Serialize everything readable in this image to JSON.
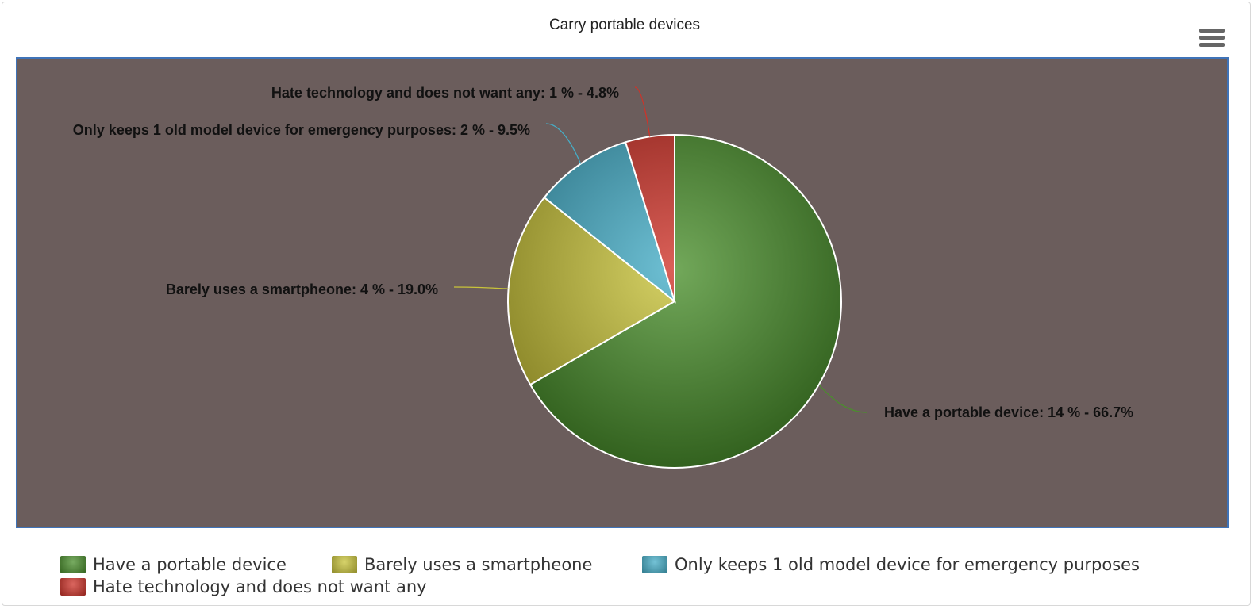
{
  "chart_data": {
    "type": "pie",
    "title": "Carry portable devices",
    "slices": [
      {
        "name": "Have a portable device",
        "value": 14,
        "percent": 66.7,
        "color": "#4a8f2c",
        "label": "Have a portable device: 14 % - 66.7%"
      },
      {
        "name": "Barely uses a smartpheone",
        "value": 4,
        "percent": 19.0,
        "color": "#c9c43a",
        "label": "Barely uses a smartpheone: 4 % - 19.0%"
      },
      {
        "name": "Only keeps 1 old model device for emergency purposes",
        "value": 2,
        "percent": 9.5,
        "color": "#45aec8",
        "label": "Only keeps 1 old model device for emergency purposes: 2 % - 9.5%"
      },
      {
        "name": "Hate technology and does not want any",
        "value": 1,
        "percent": 4.8,
        "color": "#cf3329",
        "label": "Hate technology and does not want any: 1 % - 4.8%"
      }
    ],
    "legend_position": "bottom",
    "plot_background": "#6b5d5c",
    "plot_border": "#3f73b8"
  },
  "toolbar": {
    "menu_icon": "hamburger-menu-icon"
  }
}
